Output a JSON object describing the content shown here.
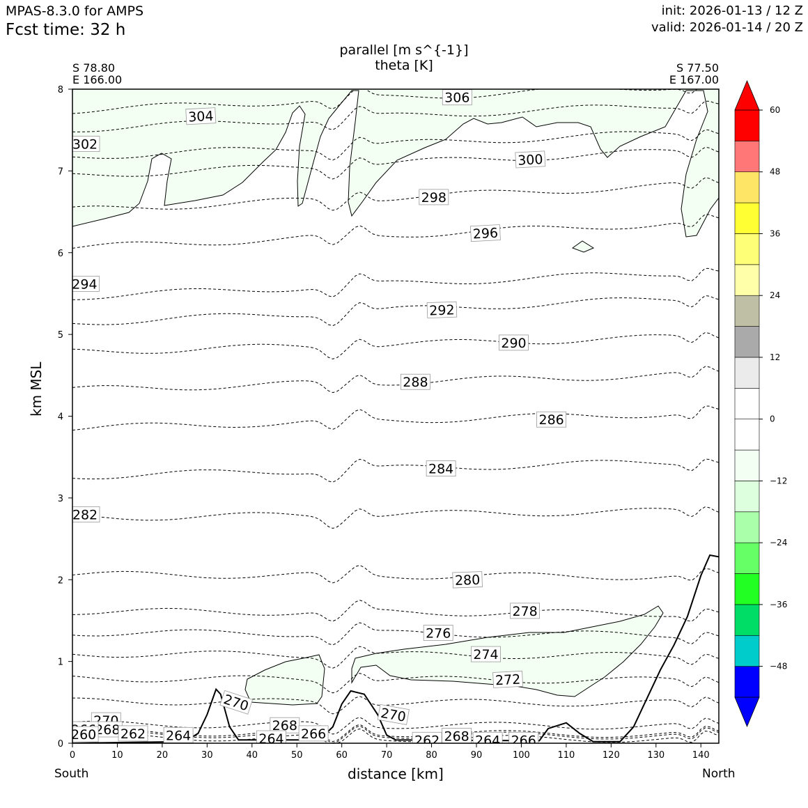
{
  "header": {
    "model": "MPAS-8.3.0 for AMPS",
    "fcst": "Fcst time:   32 h",
    "init": "init: 2026-01-13 / 12 Z",
    "valid": "valid: 2026-01-14 / 20 Z"
  },
  "chart_data": {
    "type": "contour-cross-section",
    "title_line1": "parallel [m s^{-1}]",
    "title_line2": "theta [K]",
    "left_coord": [
      "S 78.80",
      "E 166.00"
    ],
    "right_coord": [
      "S 77.50",
      "E 167.00"
    ],
    "xlabel": "distance [km]",
    "ylabel": "km MSL",
    "x_end_labels": [
      "South",
      "North"
    ],
    "xlim": [
      0,
      144
    ],
    "ylim": [
      0,
      8
    ],
    "xticks": [
      "0",
      "10",
      "20",
      "30",
      "40",
      "50",
      "60",
      "70",
      "80",
      "90",
      "100",
      "110",
      "120",
      "130",
      "140"
    ],
    "yticks": [
      "0",
      "1",
      "2",
      "3",
      "4",
      "5",
      "6",
      "7",
      "8"
    ],
    "colorbar": {
      "levels": [
        -54,
        -48,
        -42,
        -36,
        -30,
        -24,
        -18,
        -12,
        -6,
        0,
        6,
        12,
        18,
        24,
        30,
        36,
        42,
        48,
        54,
        60
      ],
      "colors": [
        "#0000ff",
        "#00cccc",
        "#00dd66",
        "#22ff22",
        "#66ff66",
        "#aaffaa",
        "#ddffdd",
        "#f4fff4",
        "#ffffff",
        "#ffffff",
        "#ebebeb",
        "#aaaaaa",
        "#bfbfa5",
        "#ffffaa",
        "#ffff77",
        "#ffff33",
        "#ffe566",
        "#ff7777",
        "#ff0000"
      ],
      "extend_low_color": "#0000ff",
      "extend_high_color": "#ff0000",
      "tick_values": [
        -48,
        -36,
        -24,
        -12,
        0,
        12,
        24,
        36,
        48,
        60
      ],
      "tick_labels": [
        "−48",
        "−36",
        "−24",
        "−12",
        "0",
        "12",
        "24",
        "36",
        "48",
        "60"
      ]
    },
    "theta_contours": [
      {
        "value": 306,
        "y": 7.9
      },
      {
        "value": 304,
        "y": 7.67
      },
      {
        "value": 302,
        "y": 7.33
      },
      {
        "value": 300,
        "y": 7.1
      },
      {
        "value": 298,
        "y": 6.68
      },
      {
        "value": 296,
        "y": 6.22
      },
      {
        "value": 294,
        "y": 5.62
      },
      {
        "value": 292,
        "y": 5.3
      },
      {
        "value": 290,
        "y": 4.88
      },
      {
        "value": 288,
        "y": 4.42
      },
      {
        "value": 286,
        "y": 3.95
      },
      {
        "value": 284,
        "y": 3.36
      },
      {
        "value": 282,
        "y": 2.8
      },
      {
        "value": 280,
        "y": 2.05
      },
      {
        "value": 278,
        "y": 1.6
      },
      {
        "value": 276,
        "y": 1.34
      },
      {
        "value": 274,
        "y": 1.08
      },
      {
        "value": 272,
        "y": 0.78
      },
      {
        "value": 270,
        "y": 0.5
      },
      {
        "value": 268,
        "y": 0.22
      },
      {
        "value": 266,
        "y": 0.12
      },
      {
        "value": 264,
        "y": 0.06
      },
      {
        "value": 262,
        "y": 0.1
      }
    ],
    "contour_labels": [
      {
        "text": "306",
        "x": 85.7,
        "y": 7.9,
        "rot": 0
      },
      {
        "text": "304",
        "x": 28.6,
        "y": 7.67,
        "rot": -3
      },
      {
        "text": "302",
        "x": 2.8,
        "y": 7.33,
        "rot": 0
      },
      {
        "text": "300",
        "x": 102.0,
        "y": 7.14,
        "rot": -3
      },
      {
        "text": "298",
        "x": 80.5,
        "y": 6.68,
        "rot": 0
      },
      {
        "text": "296",
        "x": 92.0,
        "y": 6.24,
        "rot": -3
      },
      {
        "text": "294",
        "x": 2.7,
        "y": 5.62,
        "rot": 0
      },
      {
        "text": "292",
        "x": 82.3,
        "y": 5.3,
        "rot": -2
      },
      {
        "text": "290",
        "x": 98.3,
        "y": 4.9,
        "rot": 0
      },
      {
        "text": "288",
        "x": 76.4,
        "y": 4.42,
        "rot": 0
      },
      {
        "text": "286",
        "x": 106.7,
        "y": 3.96,
        "rot": 0
      },
      {
        "text": "284",
        "x": 82.1,
        "y": 3.36,
        "rot": 0
      },
      {
        "text": "282",
        "x": 2.8,
        "y": 2.8,
        "rot": 0
      },
      {
        "text": "280",
        "x": 88.0,
        "y": 2.0,
        "rot": -2
      },
      {
        "text": "278",
        "x": 100.8,
        "y": 1.62,
        "rot": 0
      },
      {
        "text": "276",
        "x": 81.5,
        "y": 1.35,
        "rot": 0
      },
      {
        "text": "274",
        "x": 92.1,
        "y": 1.09,
        "rot": 0
      },
      {
        "text": "272",
        "x": 97.0,
        "y": 0.78,
        "rot": -3
      },
      {
        "text": "270",
        "x": 36.5,
        "y": 0.5,
        "rot": 18
      },
      {
        "text": "270",
        "x": 71.5,
        "y": 0.35,
        "rot": 10
      },
      {
        "text": "270",
        "x": 7.5,
        "y": 0.28,
        "rot": 0
      },
      {
        "text": "268",
        "x": 47.3,
        "y": 0.22,
        "rot": 0
      },
      {
        "text": "268",
        "x": 85.6,
        "y": 0.09,
        "rot": 0
      },
      {
        "text": "268",
        "x": 7.8,
        "y": 0.17,
        "rot": 0
      },
      {
        "text": "266",
        "x": 53.7,
        "y": 0.12,
        "rot": 0
      },
      {
        "text": "266",
        "x": 2.5,
        "y": 0.17,
        "rot": 0
      },
      {
        "text": "266",
        "x": 100.5,
        "y": 0.04,
        "rot": 0
      },
      {
        "text": "264",
        "x": 23.6,
        "y": 0.1,
        "rot": 0
      },
      {
        "text": "264",
        "x": 44.3,
        "y": 0.06,
        "rot": 0
      },
      {
        "text": "264",
        "x": 92.5,
        "y": 0.04,
        "rot": 0
      },
      {
        "text": "262",
        "x": 13.5,
        "y": 0.12,
        "rot": 0
      },
      {
        "text": "262",
        "x": 79.0,
        "y": 0.04,
        "rot": 0
      },
      {
        "text": "260",
        "x": 2.5,
        "y": 0.11,
        "rot": 0
      }
    ],
    "terrain_km": [
      [
        0,
        0
      ],
      [
        25,
        0.02
      ],
      [
        28,
        0.12
      ],
      [
        30,
        0.35
      ],
      [
        32,
        0.66
      ],
      [
        33,
        0.6
      ],
      [
        35,
        0.2
      ],
      [
        37,
        0.04
      ],
      [
        55,
        0.04
      ],
      [
        58,
        0.2
      ],
      [
        60,
        0.48
      ],
      [
        62,
        0.64
      ],
      [
        65,
        0.6
      ],
      [
        68,
        0.35
      ],
      [
        70,
        0.1
      ],
      [
        72,
        0.04
      ],
      [
        104,
        0.03
      ],
      [
        106,
        0.18
      ],
      [
        110,
        0.25
      ],
      [
        113,
        0.12
      ],
      [
        116,
        0.02
      ],
      [
        122,
        0.02
      ],
      [
        125,
        0.2
      ],
      [
        128,
        0.55
      ],
      [
        131,
        0.9
      ],
      [
        134,
        1.2
      ],
      [
        137,
        1.55
      ],
      [
        140,
        2.05
      ],
      [
        142,
        2.3
      ],
      [
        144,
        2.28
      ]
    ]
  }
}
